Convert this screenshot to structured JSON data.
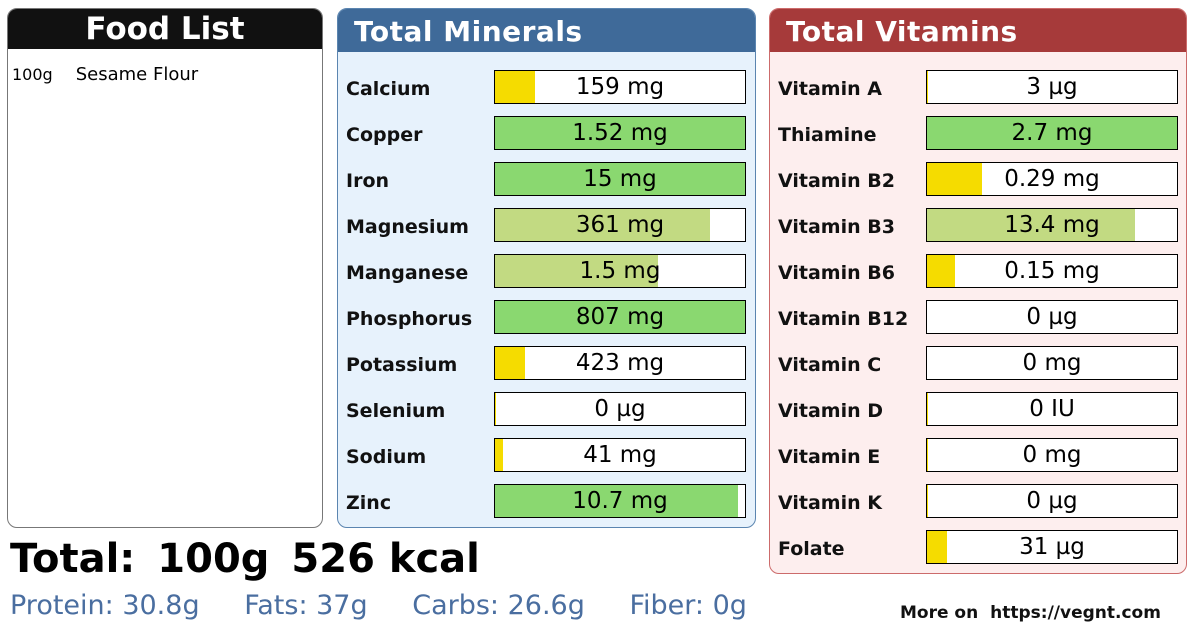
{
  "food_list": {
    "title": "Food List",
    "items": [
      {
        "amount": "100g",
        "name": "Sesame Flour"
      }
    ]
  },
  "minerals": {
    "title": "Total Minerals",
    "rows": [
      {
        "label": "Calcium",
        "value": "159 mg",
        "percent": 16,
        "color": "#f5dc00"
      },
      {
        "label": "Copper",
        "value": "1.52 mg",
        "percent": 100,
        "color": "#8ad870"
      },
      {
        "label": "Iron",
        "value": "15 mg",
        "percent": 100,
        "color": "#8ad870"
      },
      {
        "label": "Magnesium",
        "value": "361 mg",
        "percent": 86,
        "color": "#c2da82"
      },
      {
        "label": "Manganese",
        "value": "1.5 mg",
        "percent": 65,
        "color": "#c2da82"
      },
      {
        "label": "Phosphorus",
        "value": "807 mg",
        "percent": 100,
        "color": "#8ad870"
      },
      {
        "label": "Potassium",
        "value": "423 mg",
        "percent": 12,
        "color": "#f5dc00"
      },
      {
        "label": "Selenium",
        "value": "0 µg",
        "percent": 0.5,
        "color": "#f5dc00"
      },
      {
        "label": "Sodium",
        "value": "41 mg",
        "percent": 3,
        "color": "#f5dc00"
      },
      {
        "label": "Zinc",
        "value": "10.7 mg",
        "percent": 97,
        "color": "#8ad870"
      }
    ]
  },
  "vitamins": {
    "title": "Total Vitamins",
    "rows": [
      {
        "label": "Vitamin A",
        "value": "3 µg",
        "percent": 0.5,
        "color": "#f5dc00"
      },
      {
        "label": "Thiamine",
        "value": "2.7 mg",
        "percent": 100,
        "color": "#8ad870"
      },
      {
        "label": "Vitamin B2",
        "value": "0.29 mg",
        "percent": 22,
        "color": "#f5dc00"
      },
      {
        "label": "Vitamin B3",
        "value": "13.4 mg",
        "percent": 83,
        "color": "#c2da82"
      },
      {
        "label": "Vitamin B6",
        "value": "0.15 mg",
        "percent": 11,
        "color": "#f5dc00"
      },
      {
        "label": "Vitamin B12",
        "value": "0 µg",
        "percent": 0,
        "color": "#f5dc00"
      },
      {
        "label": "Vitamin C",
        "value": "0 mg",
        "percent": 0,
        "color": "#f5dc00"
      },
      {
        "label": "Vitamin D",
        "value": "0 IU",
        "percent": 0.5,
        "color": "#f5dc00"
      },
      {
        "label": "Vitamin E",
        "value": "0 mg",
        "percent": 0.5,
        "color": "#f5dc00"
      },
      {
        "label": "Vitamin K",
        "value": "0 µg",
        "percent": 0.5,
        "color": "#f5dc00"
      },
      {
        "label": "Folate",
        "value": "31 µg",
        "percent": 8,
        "color": "#f5dc00"
      }
    ]
  },
  "totals": {
    "label": "Total:",
    "weight": "100g",
    "energy": "526 kcal"
  },
  "macros": {
    "protein": "Protein: 30.8g",
    "fats": "Fats: 37g",
    "carbs": "Carbs: 26.6g",
    "fiber": "Fiber: 0g"
  },
  "footer": {
    "more_on": "More on",
    "url": "https://vegnt.com"
  }
}
